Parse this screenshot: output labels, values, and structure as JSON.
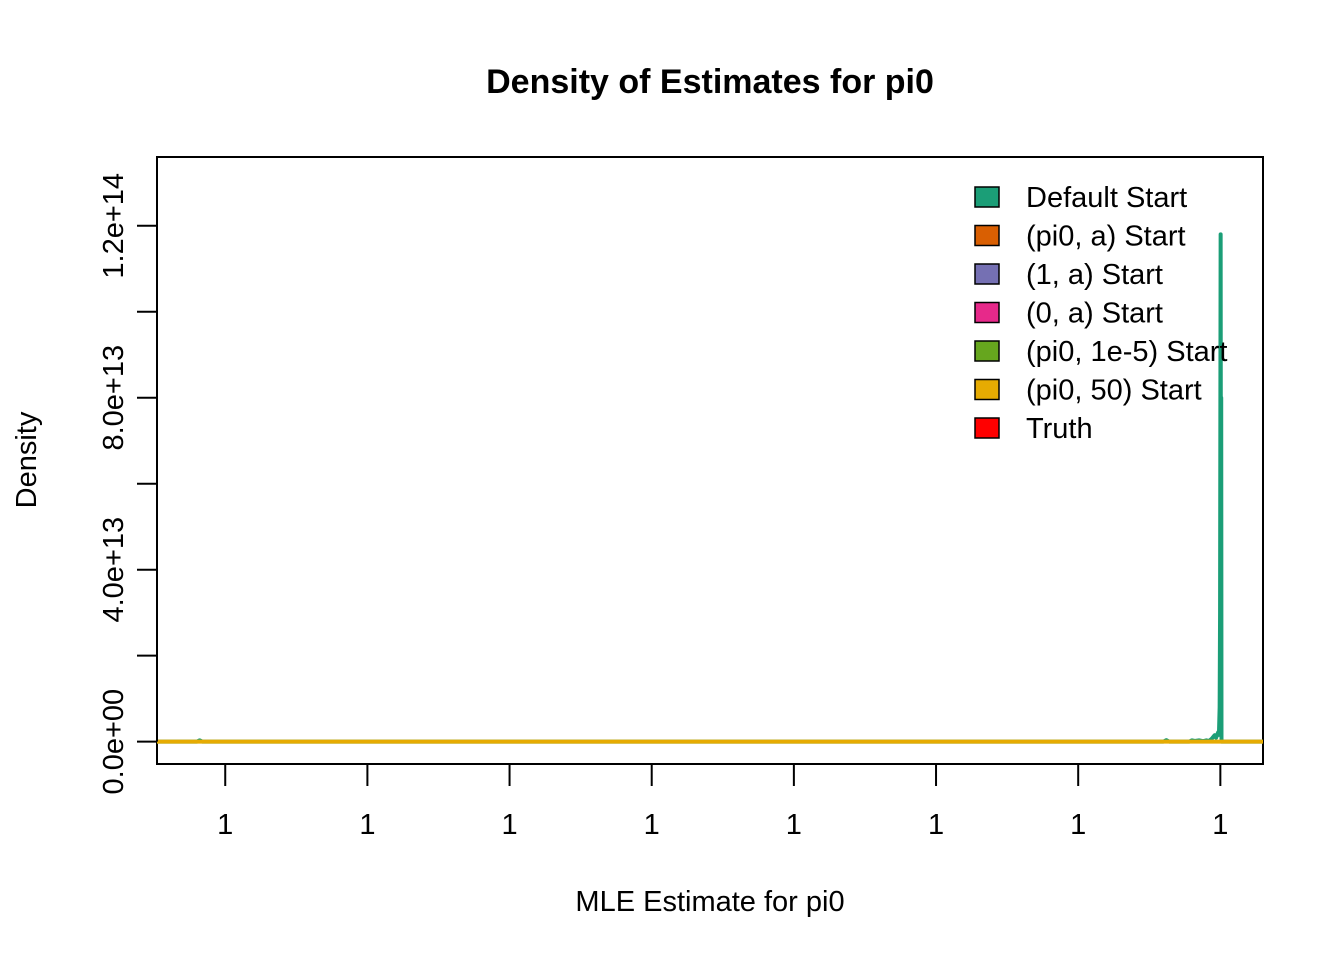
{
  "chart_data": {
    "type": "line",
    "title": "Density of Estimates for pi0",
    "xlabel": "MLE Estimate for pi0",
    "ylabel": "Density",
    "x_tick_labels": [
      "1",
      "1",
      "1",
      "1",
      "1",
      "1",
      "1",
      "1"
    ],
    "y_ticks": [
      0,
      20000000000000,
      40000000000000,
      60000000000000,
      80000000000000,
      100000000000000,
      120000000000000
    ],
    "y_tick_labels": [
      "0.0e+00",
      "4.0e+13",
      "8.0e+13",
      "1.2e+14"
    ],
    "y_tick_label_values": [
      0,
      40000000000000,
      80000000000000,
      120000000000000
    ],
    "ylim": [
      -5200000000000,
      136000000000000
    ],
    "x_index_range": [
      0,
      7
    ],
    "xlim": [
      -0.48,
      7.3
    ],
    "grid": false,
    "legend_position": "top-right",
    "legend": [
      {
        "label": "Default Start",
        "color": "#1b9e77"
      },
      {
        "label": "(pi0, a) Start",
        "color": "#d95f02"
      },
      {
        "label": "(1, a) Start",
        "color": "#7570b3"
      },
      {
        "label": "(0, a) Start",
        "color": "#e7298a"
      },
      {
        "label": "(pi0, 1e-5) Start",
        "color": "#66a61e"
      },
      {
        "label": "(pi0, 50) Start",
        "color": "#e6ab02"
      },
      {
        "label": "Truth",
        "color": "#ff0000"
      }
    ],
    "series": [
      {
        "name": "Default Start",
        "color": "#1b9e77",
        "points": [
          [
            -0.48,
            0
          ],
          [
            -0.2,
            0
          ],
          [
            -0.18,
            300000000000
          ],
          [
            -0.16,
            0
          ],
          [
            6.6,
            0
          ],
          [
            6.62,
            350000000000
          ],
          [
            6.64,
            0
          ],
          [
            6.78,
            0
          ],
          [
            6.8,
            300000000000
          ],
          [
            6.82,
            150000000000
          ],
          [
            6.85,
            300000000000
          ],
          [
            6.88,
            100000000000
          ],
          [
            6.9,
            300000000000
          ],
          [
            6.92,
            150000000000
          ],
          [
            6.94,
            700000000000
          ],
          [
            6.96,
            1500000000000
          ],
          [
            6.97,
            900000000000
          ],
          [
            6.98,
            1800000000000
          ],
          [
            6.985,
            2200000000000
          ],
          [
            6.99,
            1600000000000
          ],
          [
            6.995,
            8000000000000
          ],
          [
            6.998,
            30000000000000
          ],
          [
            7.0,
            75000000000000
          ],
          [
            7.002,
            118000000000000
          ],
          [
            7.004,
            47000000000000
          ],
          [
            7.006,
            80000000000000
          ],
          [
            7.008,
            0
          ],
          [
            7.3,
            0
          ]
        ]
      },
      {
        "name": "(pi0, 50) Start",
        "color": "#e6ab02",
        "points": [
          [
            -0.48,
            0
          ],
          [
            7.3,
            0
          ]
        ]
      }
    ]
  }
}
